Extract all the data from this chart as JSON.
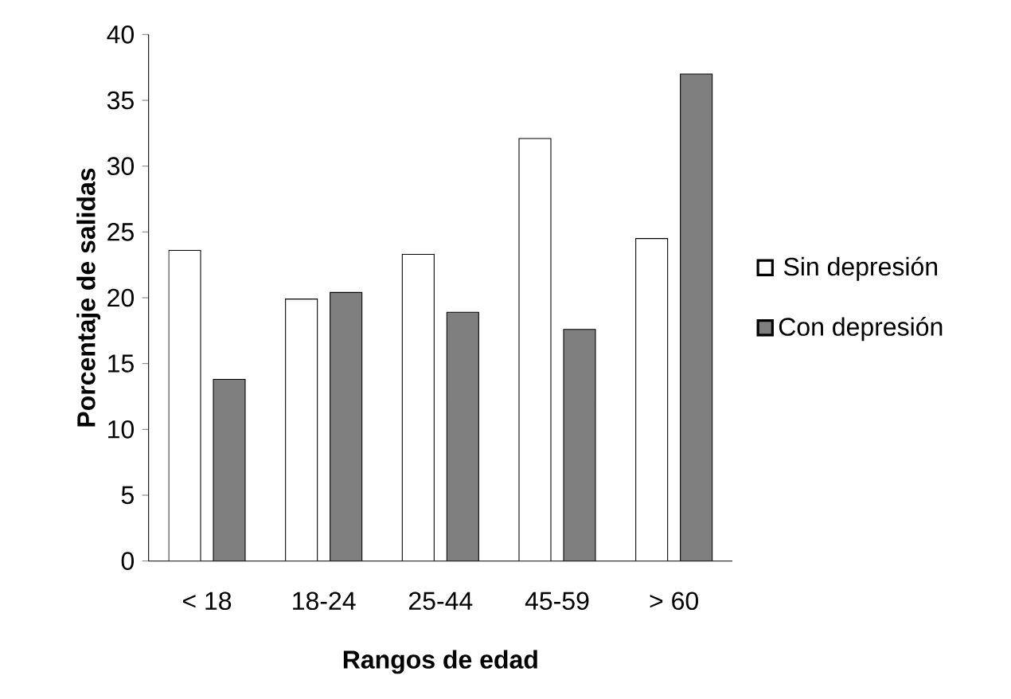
{
  "chart_data": {
    "type": "bar",
    "xlabel": "Rangos de edad",
    "ylabel": "Porcentaje de salidas",
    "categories": [
      "< 18",
      "18-24",
      "25-44",
      "45-59",
      "> 60"
    ],
    "series": [
      {
        "name": "Sin depresión",
        "color": "#ffffff",
        "values": [
          23.6,
          19.9,
          23.3,
          32.1,
          24.5
        ]
      },
      {
        "name": "Con depresión",
        "color": "#7f7f7f",
        "values": [
          13.8,
          20.4,
          18.9,
          17.6,
          37.0
        ]
      }
    ],
    "ylim": [
      0,
      40
    ],
    "yticks": [
      0,
      5,
      10,
      15,
      20,
      25,
      30,
      35,
      40
    ],
    "legend": "right",
    "grid": false
  }
}
